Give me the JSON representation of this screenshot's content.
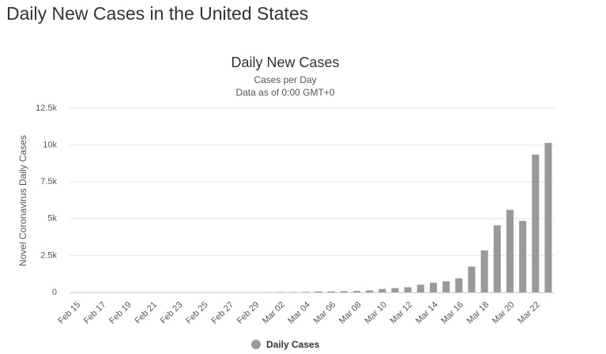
{
  "page_title": "Daily New Cases in the United States",
  "chart_data": {
    "type": "bar",
    "title": "Daily New Cases",
    "subtitle": [
      "Cases per Day",
      "Data as of 0:00 GMT+0"
    ],
    "y_label": "Novel Coronavirus Daily Cases",
    "categories": [
      "Feb 15",
      null,
      "Feb 17",
      null,
      "Feb 19",
      null,
      "Feb 21",
      null,
      "Feb 23",
      null,
      "Feb 25",
      null,
      "Feb 27",
      null,
      "Feb 29",
      null,
      "Mar 02",
      null,
      "Mar 04",
      null,
      "Mar 06",
      null,
      "Mar 08",
      null,
      "Mar 10",
      null,
      "Mar 12",
      null,
      "Mar 14",
      null,
      "Mar 16",
      null,
      "Mar 18",
      null,
      "Mar 20",
      null,
      "Mar 22",
      null
    ],
    "series": [
      {
        "name": "Daily Cases",
        "color": "#999999",
        "values": [
          0,
          0,
          0,
          0,
          0,
          0,
          2,
          0,
          0,
          0,
          0,
          0,
          0,
          0,
          0,
          8,
          20,
          22,
          30,
          70,
          60,
          80,
          100,
          130,
          230,
          290,
          350,
          520,
          650,
          750,
          950,
          1750,
          2850,
          4550,
          5600,
          4850,
          9350,
          10150
        ]
      }
    ],
    "ylim": [
      0,
      12500
    ],
    "yticks": [
      0,
      {
        "value": 2500,
        "label": "2.5k"
      },
      {
        "value": 5000,
        "label": "5k"
      },
      {
        "value": 7500,
        "label": "7.5k"
      },
      {
        "value": 10000,
        "label": "10k"
      },
      {
        "value": 12500,
        "label": "12.5k"
      }
    ],
    "grid": true,
    "legend": "bottom"
  }
}
